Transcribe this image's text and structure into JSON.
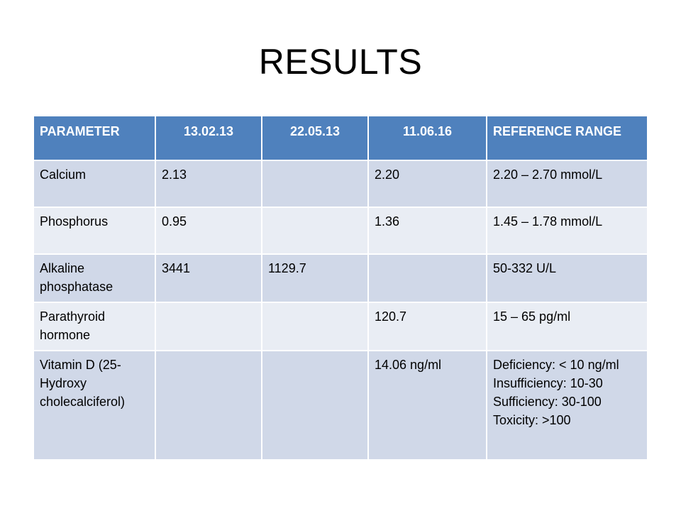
{
  "title": "RESULTS",
  "table": {
    "headers": [
      "PARAMETER",
      "13.02.13",
      "22.05.13",
      "11.06.16",
      "REFERENCE RANGE"
    ],
    "rows": [
      {
        "parameter": "Calcium",
        "d1": "2.13",
        "d2": "",
        "d3": "2.20",
        "range": [
          "2.20 – 2.70 mmol/L"
        ]
      },
      {
        "parameter": "Phosphorus",
        "d1": "0.95",
        "d2": "",
        "d3": "1.36",
        "range": [
          "1.45 – 1.78 mmol/L"
        ]
      },
      {
        "parameter": "Alkaline phosphatase",
        "d1": "3441",
        "d2": "1129.7",
        "d3": "",
        "range": [
          "50-332 U/L"
        ]
      },
      {
        "parameter": "Parathyroid hormone",
        "d1": "",
        "d2": "",
        "d3": "120.7",
        "range": [
          "15 – 65 pg/ml"
        ]
      },
      {
        "parameter": "Vitamin D (25-Hydroxy cholecalciferol)",
        "d1": "",
        "d2": "",
        "d3": "14.06 ng/ml",
        "range": [
          "Deficiency: < 10 ng/ml",
          "Insufficiency: 10-30",
          "Sufficiency: 30-100",
          "Toxicity: >100"
        ]
      }
    ]
  },
  "colors": {
    "header_bg": "#4f81bd",
    "row_odd": "#d0d8e8",
    "row_even": "#e9edf4"
  }
}
